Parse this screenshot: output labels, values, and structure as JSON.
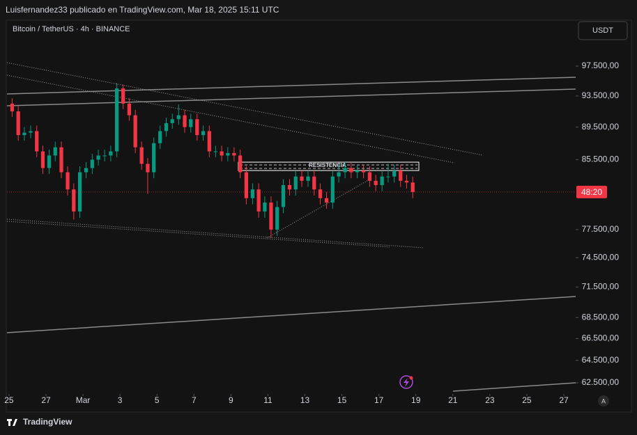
{
  "header": {
    "text": "Luisfernandez33 publicado en TradingView.com, Mar 18, 2025 15:11 UTC"
  },
  "footer": {
    "logo": "TradingView"
  },
  "chart_data": {
    "type": "candlestick",
    "title": "Bitcoin / TetherUS · 4h · BINANCE",
    "currency": "USDT",
    "annotation": "RESISTENCIA",
    "countdown": "48:20",
    "auto_button": "A",
    "log_scale": true,
    "up_color": "#089981",
    "down_color": "#f23645",
    "xlim": [
      -3.11,
      27.64
    ],
    "xticks": [
      {
        "value": -3,
        "label": "25"
      },
      {
        "value": -1,
        "label": "27"
      },
      {
        "value": 1,
        "label": "Mar"
      },
      3,
      5,
      7,
      9,
      11,
      13,
      15,
      17,
      19,
      21,
      23,
      25,
      27
    ],
    "ylim": [
      61590,
      101390
    ],
    "yticks": [
      {
        "value": 97500,
        "label": "97.500,00"
      },
      {
        "value": 93500,
        "label": "93.500,00"
      },
      {
        "value": 89500,
        "label": "89.500,00"
      },
      {
        "value": 85500,
        "label": "85.500,00"
      },
      {
        "value": 77500,
        "label": "77.500,00"
      },
      {
        "value": 74500,
        "label": "74.500,00"
      },
      {
        "value": 71500,
        "label": "71.500,00"
      },
      {
        "value": 68500,
        "label": "68.500,00"
      },
      {
        "value": 66500,
        "label": "66.500,00"
      },
      {
        "value": 64500,
        "label": "64.500,00"
      },
      {
        "value": 62500,
        "label": "62.500,00"
      }
    ],
    "x": [
      -2.83,
      -2.5,
      -2.17,
      -1.83,
      -1.5,
      -1.17,
      -0.83,
      -0.5,
      -0.17,
      0.17,
      0.5,
      0.83,
      1.17,
      1.5,
      1.83,
      2.17,
      2.5,
      2.83,
      3.17,
      3.5,
      3.83,
      4.17,
      4.5,
      4.83,
      5.17,
      5.5,
      5.83,
      6.17,
      6.5,
      6.83,
      7.17,
      7.5,
      7.83,
      8.17,
      8.5,
      8.83,
      9.17,
      9.5,
      9.83,
      10.17,
      10.5,
      10.83,
      11.17,
      11.5,
      11.83,
      12.17,
      12.5,
      12.83,
      13.17,
      13.5,
      13.83,
      14.17,
      14.5,
      14.83,
      15.17,
      15.5,
      15.83,
      16.17,
      16.5,
      16.83,
      17.17,
      17.5,
      17.83,
      18.17,
      18.5,
      18.83
    ],
    "open": [
      92500,
      91500,
      88500,
      88800,
      89000,
      86500,
      84500,
      86000,
      87000,
      84000,
      82000,
      79500,
      84000,
      84500,
      85500,
      86000,
      86000,
      86500,
      94500,
      92500,
      91000,
      87000,
      85000,
      84000,
      87500,
      89000,
      90000,
      90500,
      91000,
      89500,
      90500,
      88500,
      89000,
      86500,
      86500,
      86000,
      86300,
      86000,
      84000,
      81000,
      82000,
      79500,
      80500,
      77500,
      80000,
      82500,
      82000,
      83500,
      83000,
      83500,
      82000,
      81000,
      80500,
      83500,
      84000,
      84500,
      84000,
      84200,
      84000,
      83000,
      82500,
      83500,
      83500,
      84200,
      83000,
      82800
    ],
    "high": [
      93200,
      92200,
      89500,
      89700,
      89700,
      87200,
      86700,
      87700,
      87700,
      84700,
      82700,
      84700,
      85200,
      86200,
      86700,
      86700,
      87200,
      95200,
      95000,
      93200,
      91700,
      87700,
      85700,
      88200,
      89700,
      90700,
      91200,
      92400,
      91700,
      91200,
      91200,
      89700,
      89700,
      87200,
      87200,
      87000,
      87000,
      86700,
      84700,
      82700,
      82700,
      81200,
      81200,
      80700,
      83200,
      83200,
      84200,
      84200,
      84200,
      84200,
      82700,
      81700,
      84200,
      85000,
      85200,
      85200,
      84900,
      84900,
      84700,
      83700,
      84200,
      85000,
      84900,
      84900,
      83700,
      83500
    ],
    "low": [
      90800,
      87800,
      87800,
      88100,
      85800,
      83800,
      83800,
      85300,
      83300,
      81300,
      78600,
      78800,
      83300,
      83800,
      84800,
      85300,
      85300,
      85800,
      91800,
      90300,
      86300,
      84300,
      81500,
      83300,
      86800,
      88300,
      89300,
      89800,
      88800,
      88800,
      87800,
      87800,
      85800,
      85800,
      85300,
      85300,
      85300,
      83300,
      80300,
      80300,
      78800,
      78800,
      76600,
      76800,
      79300,
      81300,
      81300,
      82300,
      82300,
      81300,
      80300,
      79800,
      79800,
      82800,
      83300,
      83300,
      83300,
      83300,
      82300,
      81800,
      81800,
      82800,
      82800,
      82300,
      82100,
      81000
    ],
    "close": [
      91500,
      88500,
      88800,
      89000,
      86500,
      84500,
      86000,
      87000,
      84000,
      82000,
      79500,
      84000,
      84500,
      85500,
      86000,
      86000,
      86500,
      94500,
      92500,
      91000,
      87000,
      85000,
      84000,
      87500,
      89000,
      90000,
      90500,
      91000,
      89500,
      90500,
      88500,
      89000,
      86500,
      86500,
      86000,
      86300,
      86000,
      84000,
      81000,
      82000,
      79500,
      80500,
      77500,
      80000,
      82500,
      82000,
      83500,
      83000,
      83500,
      82000,
      81000,
      80500,
      83500,
      84000,
      84500,
      84000,
      84200,
      84000,
      83000,
      82500,
      83500,
      83500,
      84200,
      83000,
      82800,
      81700
    ]
  }
}
